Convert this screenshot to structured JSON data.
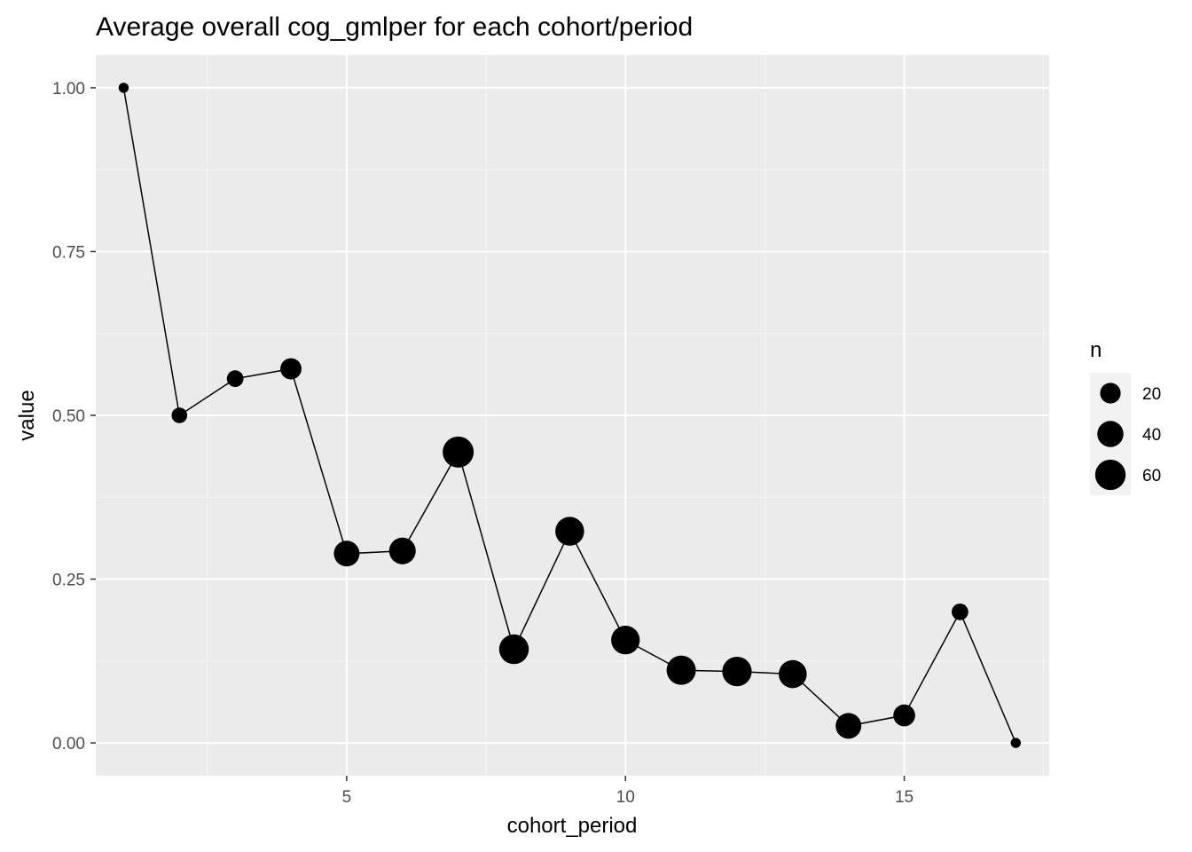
{
  "chart_data": {
    "type": "scatter",
    "title": "Average overall cog_gmlper for each cohort/period",
    "xlabel": "cohort_period",
    "ylabel": "value",
    "xlim": [
      0.5,
      17.6
    ],
    "ylim": [
      -0.05,
      1.05
    ],
    "xticks": [
      5,
      10,
      15
    ],
    "xtick_labels": [
      "5",
      "10",
      "15"
    ],
    "yticks": [
      0,
      0.25,
      0.5,
      0.75,
      1.0
    ],
    "ytick_labels": [
      "0.00",
      "0.25",
      "0.50",
      "0.75",
      "1.00"
    ],
    "grid": true,
    "connected_line": true,
    "size_variable": "n",
    "points": [
      {
        "x": 1,
        "y": 1.0,
        "n": 1
      },
      {
        "x": 2,
        "y": 0.5,
        "n": 8
      },
      {
        "x": 3,
        "y": 0.556,
        "n": 10
      },
      {
        "x": 4,
        "y": 0.571,
        "n": 22
      },
      {
        "x": 5,
        "y": 0.289,
        "n": 38
      },
      {
        "x": 6,
        "y": 0.293,
        "n": 42
      },
      {
        "x": 7,
        "y": 0.444,
        "n": 63
      },
      {
        "x": 8,
        "y": 0.143,
        "n": 56
      },
      {
        "x": 9,
        "y": 0.323,
        "n": 52
      },
      {
        "x": 10,
        "y": 0.157,
        "n": 51
      },
      {
        "x": 11,
        "y": 0.111,
        "n": 54
      },
      {
        "x": 12,
        "y": 0.109,
        "n": 55
      },
      {
        "x": 13,
        "y": 0.105,
        "n": 48
      },
      {
        "x": 14,
        "y": 0.026,
        "n": 38
      },
      {
        "x": 15,
        "y": 0.042,
        "n": 24
      },
      {
        "x": 16,
        "y": 0.2,
        "n": 10
      },
      {
        "x": 17,
        "y": 0.0,
        "n": 1
      }
    ],
    "legend": {
      "title": "n",
      "placement": "right",
      "entries": [
        {
          "label": "20",
          "n": 20
        },
        {
          "label": "40",
          "n": 40
        },
        {
          "label": "60",
          "n": 60
        }
      ]
    },
    "colors": {
      "panel_background": "#ebebeb",
      "grid_major": "#ffffff",
      "grid_minor": "#f5f5f5",
      "points": "#000000",
      "line": "#000000",
      "tick_label": "#4d4d4d"
    }
  }
}
